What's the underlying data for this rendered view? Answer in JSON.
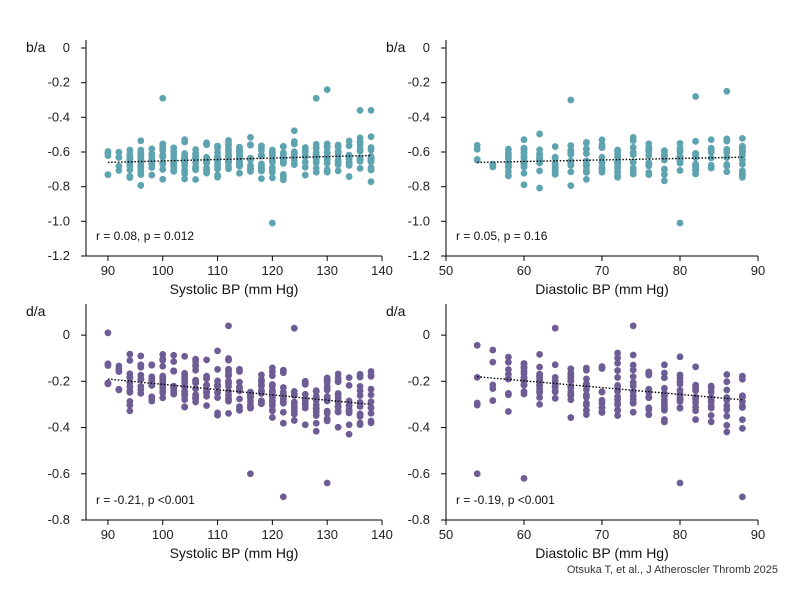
{
  "source": "Otsuka T, et al.,  J Atheroscler Thromb 2025",
  "colors": {
    "teal": "#5ea3b0",
    "purple": "#6e5d94",
    "axis": "#000000",
    "trend": "#000000"
  },
  "chart_data": [
    {
      "type": "scatter",
      "ylabel": "b/a",
      "xlabel": "Systolic BP (mm Hg)",
      "annotation": "r = 0.08, p = 0.012",
      "xlim": [
        86,
        140
      ],
      "ylim": [
        -1.2,
        0
      ],
      "xticks": [
        90,
        100,
        110,
        120,
        130,
        140
      ],
      "yticks": [
        0,
        -0.2,
        -0.4,
        -0.6,
        -0.8,
        -1.0,
        -1.2
      ],
      "color": "teal",
      "x_range": [
        90,
        138
      ],
      "x_step": 2,
      "trend": [
        [
          90,
          -0.66
        ],
        [
          138,
          -0.62
        ]
      ],
      "typical_spread": [
        -0.83,
        -0.45
      ],
      "outliers": [
        [
          100,
          -0.29
        ],
        [
          120,
          -1.01
        ],
        [
          128,
          -0.29
        ],
        [
          130,
          -0.24
        ],
        [
          136,
          -0.36
        ],
        [
          138,
          -0.36
        ]
      ]
    },
    {
      "type": "scatter",
      "ylabel": "b/a",
      "xlabel": "Diastolic BP (mm Hg)",
      "annotation": "r = 0.05, p = 0.16",
      "xlim": [
        50,
        90
      ],
      "ylim": [
        -1.2,
        0
      ],
      "xticks": [
        50,
        60,
        70,
        80,
        90
      ],
      "yticks": [
        0,
        -0.2,
        -0.4,
        -0.6,
        -0.8,
        -1.0,
        -1.2
      ],
      "color": "teal",
      "x_range": [
        54,
        88
      ],
      "x_step": 2,
      "trend": [
        [
          54,
          -0.66
        ],
        [
          88,
          -0.63
        ]
      ],
      "typical_spread": [
        -0.85,
        -0.42
      ],
      "outliers": [
        [
          66,
          -0.3
        ],
        [
          80,
          -1.01
        ],
        [
          82,
          -0.28
        ],
        [
          86,
          -0.25
        ]
      ]
    },
    {
      "type": "scatter",
      "ylabel": "d/a",
      "xlabel": "Systolic BP (mm Hg)",
      "annotation": "r = -0.21, p <0.001",
      "xlim": [
        86,
        140
      ],
      "ylim": [
        -0.8,
        0.1
      ],
      "xticks": [
        90,
        100,
        110,
        120,
        130,
        140
      ],
      "yticks": [
        0,
        -0.2,
        -0.4,
        -0.6,
        -0.8
      ],
      "color": "purple",
      "x_range": [
        90,
        138
      ],
      "x_step": 2,
      "trend": [
        [
          90,
          -0.19
        ],
        [
          138,
          -0.3
        ]
      ],
      "typical_spread": [
        -0.47,
        -0.02
      ],
      "outliers": [
        [
          90,
          0.01
        ],
        [
          112,
          0.04
        ],
        [
          116,
          -0.6
        ],
        [
          122,
          -0.7
        ],
        [
          124,
          0.03
        ],
        [
          130,
          -0.64
        ]
      ]
    },
    {
      "type": "scatter",
      "ylabel": "d/a",
      "xlabel": "Diastolic BP (mm Hg)",
      "annotation": "r = -0.19, p <0.001",
      "xlim": [
        50,
        90
      ],
      "ylim": [
        -0.8,
        0.1
      ],
      "xticks": [
        50,
        60,
        70,
        80,
        90
      ],
      "yticks": [
        0,
        -0.2,
        -0.4,
        -0.6,
        -0.8
      ],
      "color": "purple",
      "x_range": [
        54,
        88
      ],
      "x_step": 2,
      "trend": [
        [
          54,
          -0.18
        ],
        [
          88,
          -0.28
        ]
      ],
      "typical_spread": [
        -0.47,
        -0.02
      ],
      "outliers": [
        [
          54,
          -0.6
        ],
        [
          60,
          -0.62
        ],
        [
          64,
          0.03
        ],
        [
          74,
          0.04
        ],
        [
          80,
          -0.64
        ],
        [
          88,
          -0.7
        ]
      ]
    }
  ]
}
